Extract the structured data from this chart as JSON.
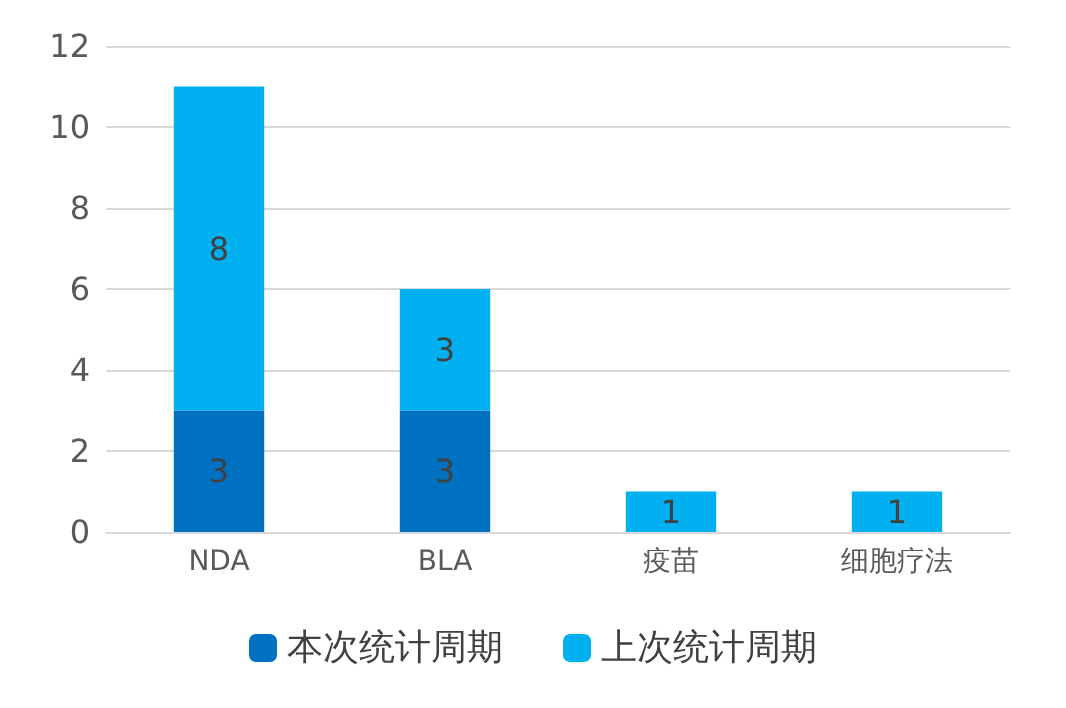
{
  "chart_data": {
    "type": "bar",
    "stacked": true,
    "categories": [
      "NDA",
      "BLA",
      "疫苗",
      "细胞疗法"
    ],
    "series": [
      {
        "name": "本次统计周期",
        "color": "#0070c0",
        "values": [
          3,
          3,
          0,
          0
        ],
        "value_labels": [
          "3",
          "3",
          null,
          null
        ]
      },
      {
        "name": "上次统计周期",
        "color": "#00b0f0",
        "values": [
          8,
          3,
          1,
          1
        ],
        "value_labels": [
          "8",
          "3",
          "1",
          "1"
        ]
      }
    ],
    "ylim": [
      0,
      12
    ],
    "yticks": [
      0,
      2,
      4,
      6,
      8,
      10,
      12
    ],
    "grid": "y",
    "legend": "bottom"
  }
}
